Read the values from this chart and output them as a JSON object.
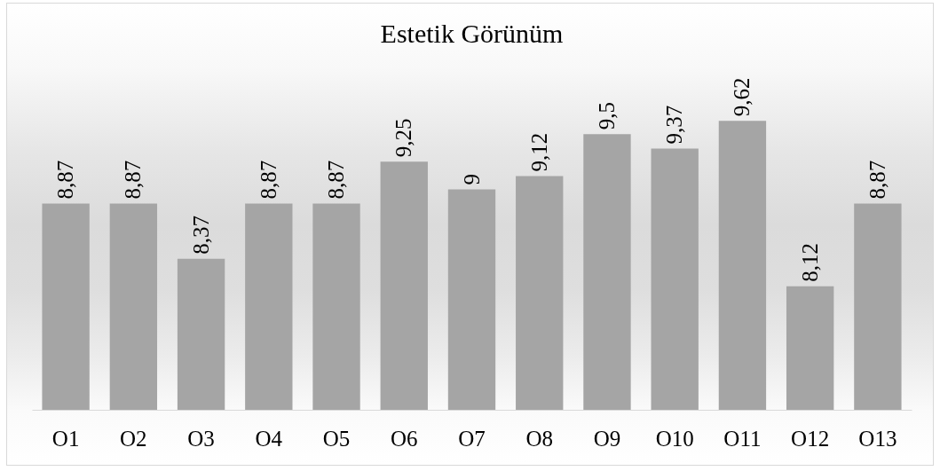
{
  "chart_data": {
    "type": "bar",
    "title": "Estetik Görünüm",
    "categories": [
      "O1",
      "O2",
      "O3",
      "O4",
      "O5",
      "O6",
      "O7",
      "O8",
      "O9",
      "O10",
      "O11",
      "O12",
      "O13"
    ],
    "values": [
      8.87,
      8.87,
      8.37,
      8.87,
      8.87,
      9.25,
      9,
      9.12,
      9.5,
      9.37,
      9.62,
      8.12,
      8.87
    ],
    "value_labels": [
      "8,87",
      "8,87",
      "8,37",
      "8,87",
      "8,87",
      "9,25",
      "9",
      "9,12",
      "9,5",
      "9,37",
      "9,62",
      "8,12",
      "8,87"
    ],
    "color": "#a5a5a5",
    "ylim": [
      7,
      9.62
    ],
    "tick_labels": "x"
  }
}
